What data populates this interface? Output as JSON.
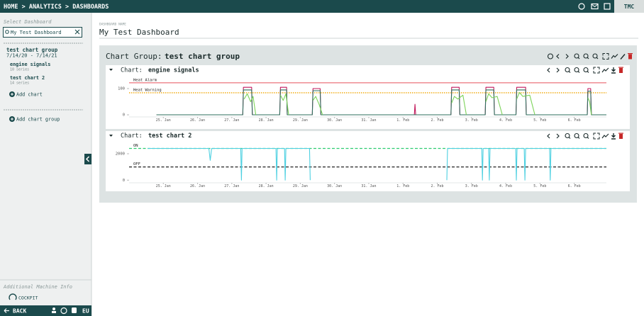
{
  "breadcrumb": "HOME > ANALYTICS > DASHBOARDS",
  "user": "TMC",
  "sidebar": {
    "select_label": "Select Dashboard",
    "search_value": "My Test Dashboard",
    "group": {
      "name": "test chart group",
      "dates": "7/14/20 - 7/14/21"
    },
    "charts": [
      {
        "name": "engine signals",
        "series_count": "10 series"
      },
      {
        "name": "test chart 2",
        "series_count": "14 series"
      }
    ],
    "add_chart": "Add chart",
    "add_group": "Add chart group",
    "additional": "Additional Machine Info",
    "cockpit": "COCKPIT",
    "back": "BACK",
    "region": "EU"
  },
  "dashboard": {
    "name_label": "DASHBOARD NAME",
    "name": "My Test Dashboard",
    "group_prefix": "Chart Group:",
    "group_name": "test chart group",
    "chart_prefix": "Chart:"
  },
  "chart_data": [
    {
      "type": "line",
      "title": "engine signals",
      "xlim": [
        0,
        13.94
      ],
      "ylim": [
        -8,
        146
      ],
      "yticks": [
        0,
        100
      ],
      "xticks": [
        {
          "value": 1,
          "label": "25. Jan"
        },
        {
          "value": 2,
          "label": "26. Jan"
        },
        {
          "value": 3,
          "label": "27. Jan"
        },
        {
          "value": 4,
          "label": "28. Jan"
        },
        {
          "value": 5,
          "label": "29. Jan"
        },
        {
          "value": 6,
          "label": "30. Jan"
        },
        {
          "value": 7,
          "label": "31. Jan"
        },
        {
          "value": 8,
          "label": "1. Feb"
        },
        {
          "value": 9,
          "label": "2. Feb"
        },
        {
          "value": 10,
          "label": "3. Feb"
        },
        {
          "value": 11,
          "label": "4. Feb"
        },
        {
          "value": 12,
          "label": "5. Feb"
        },
        {
          "value": 13,
          "label": "6. Feb"
        }
      ],
      "thresholds": [
        {
          "label": "Heat Alarm",
          "value": 122,
          "color": "#e8505b",
          "style": "solid"
        },
        {
          "label": "Heat Warning",
          "value": 84,
          "color": "#f0a500",
          "style": "dotted"
        }
      ],
      "series": [
        {
          "color": "#c2185b",
          "x": [
            0.8,
            3.32,
            3.34,
            3.58,
            3.6,
            4.4,
            4.42,
            4.6,
            4.62,
            5.35,
            5.37,
            5.58,
            5.6,
            8.33,
            8.35,
            8.37,
            9.4,
            9.42,
            9.64,
            9.66,
            10.4,
            10.42,
            10.65,
            10.67,
            11.3,
            11.32,
            11.58,
            11.6,
            13.38,
            13.4,
            13.48,
            13.5,
            13.94
          ],
          "values": [
            0,
            0,
            105,
            105,
            0,
            0,
            105,
            105,
            0,
            0,
            100,
            100,
            0,
            0,
            40,
            0,
            0,
            105,
            105,
            0,
            0,
            105,
            105,
            0,
            0,
            105,
            105,
            0,
            0,
            100,
            100,
            0,
            0
          ]
        },
        {
          "color": "#2e6f5e",
          "x": [
            0.8,
            3.32,
            3.34,
            3.58,
            3.6,
            4.4,
            4.42,
            4.6,
            4.62,
            5.35,
            5.37,
            5.58,
            5.6,
            8.33,
            8.35,
            8.37,
            9.4,
            9.42,
            9.64,
            9.66,
            10.4,
            10.42,
            10.65,
            10.67,
            11.3,
            11.32,
            11.58,
            11.6,
            13.38,
            13.4,
            13.48,
            13.5,
            13.94
          ],
          "values": [
            0,
            0,
            95,
            95,
            0,
            0,
            95,
            95,
            0,
            0,
            92,
            92,
            0,
            0,
            0,
            0,
            0,
            95,
            95,
            0,
            0,
            95,
            95,
            0,
            0,
            95,
            95,
            0,
            0,
            90,
            90,
            0,
            0
          ]
        },
        {
          "color": "#7cd35a",
          "x": [
            3.36,
            3.45,
            3.55,
            3.62,
            3.7,
            null,
            4.42,
            4.5,
            4.58,
            4.66,
            null,
            5.37,
            5.45,
            5.55,
            5.65,
            null,
            9.42,
            9.5,
            9.6,
            9.75,
            9.85,
            null,
            10.42,
            10.5,
            10.6,
            10.75,
            10.9,
            null,
            11.32,
            11.4,
            11.5,
            11.7,
            11.85,
            null,
            13.4,
            13.45,
            13.5
          ],
          "values": [
            60,
            80,
            50,
            70,
            0,
            null,
            75,
            55,
            80,
            0,
            null,
            55,
            70,
            40,
            0,
            null,
            45,
            70,
            60,
            75,
            0,
            null,
            50,
            80,
            65,
            70,
            0,
            null,
            60,
            85,
            70,
            75,
            0,
            null,
            65,
            50,
            0
          ]
        }
      ]
    },
    {
      "type": "line",
      "title": "test chart 2",
      "xlim": [
        0,
        13.94
      ],
      "ylim": [
        -200,
        2750
      ],
      "yticks": [
        0,
        2000
      ],
      "xticks": [
        {
          "value": 1,
          "label": "25. Jan"
        },
        {
          "value": 2,
          "label": "26. Jan"
        },
        {
          "value": 3,
          "label": "27. Jan"
        },
        {
          "value": 4,
          "label": "28. Jan"
        },
        {
          "value": 5,
          "label": "29. Jan"
        },
        {
          "value": 6,
          "label": "30. Jan"
        },
        {
          "value": 7,
          "label": "31. Jan"
        },
        {
          "value": 8,
          "label": "1. Feb"
        },
        {
          "value": 9,
          "label": "2. Feb"
        },
        {
          "value": 10,
          "label": "3. Feb"
        },
        {
          "value": 11,
          "label": "4. Feb"
        },
        {
          "value": 12,
          "label": "5. Feb"
        },
        {
          "value": 13,
          "label": "6. Feb"
        }
      ],
      "thresholds": [
        {
          "label": "ON",
          "value": 2400,
          "color": "#2ecc71",
          "style": "dashed"
        },
        {
          "label": "OFF",
          "value": 1000,
          "color": "#222222",
          "style": "dashed"
        }
      ],
      "series": [
        {
          "color": "#4dd0e1",
          "x": [
            0.54,
            2.33,
            2.37,
            2.41,
            3.26,
            3.28,
            3.3,
            4.29,
            4.31,
            4.33,
            4.54,
            4.56,
            4.58,
            5.27,
            5.29,
            null,
            9.28,
            9.3,
            10.3,
            10.32,
            10.34,
            10.5,
            10.52,
            10.54,
            11.29,
            11.31,
            11.33,
            11.54,
            11.56,
            11.58,
            12.28,
            12.3,
            12.32,
            13.94
          ],
          "values": [
            2400,
            2400,
            1500,
            2400,
            2400,
            0,
            2400,
            2400,
            0,
            2400,
            2400,
            0,
            2400,
            2400,
            0,
            null,
            0,
            2400,
            2400,
            0,
            2400,
            2400,
            0,
            2400,
            2400,
            0,
            2400,
            2400,
            0,
            2400,
            2400,
            0,
            2400,
            2400
          ]
        }
      ]
    }
  ]
}
